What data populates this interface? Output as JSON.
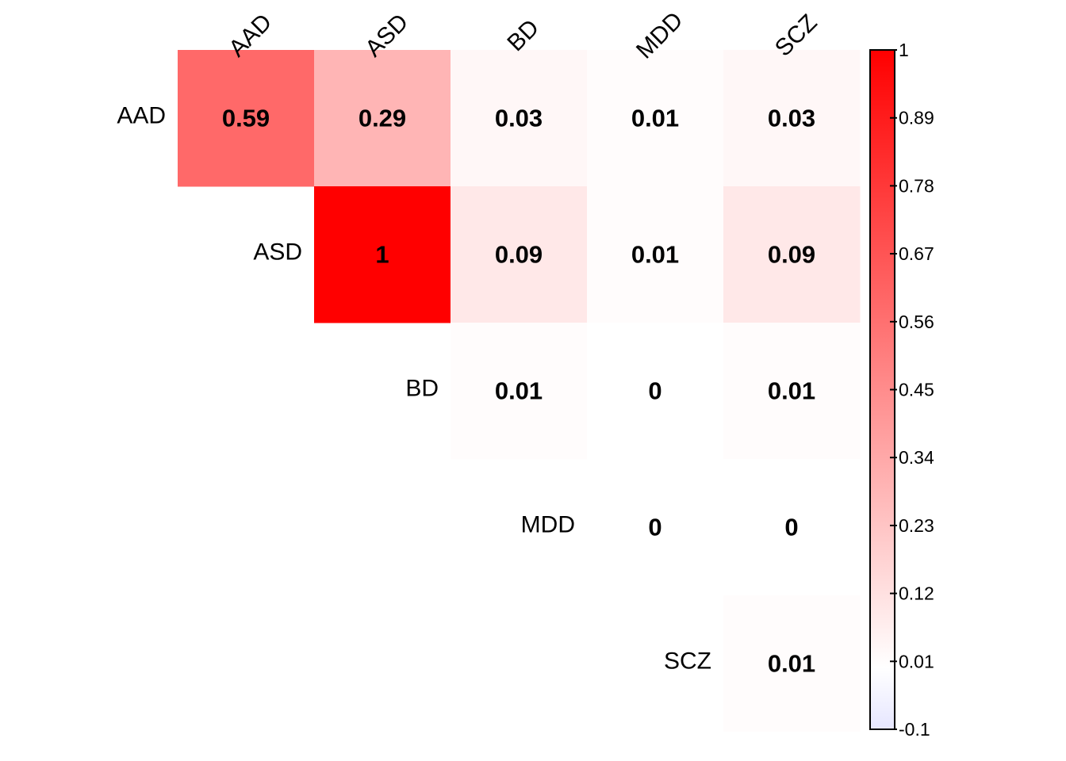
{
  "chart_data": {
    "type": "heatmap",
    "layout": "upper-triangle",
    "categories": [
      "AAD",
      "ASD",
      "BD",
      "MDD",
      "SCZ"
    ],
    "values": [
      [
        0.59,
        0.29,
        0.03,
        0.01,
        0.03
      ],
      [
        null,
        1,
        0.09,
        0.01,
        0.09
      ],
      [
        null,
        null,
        0.01,
        0,
        0.01
      ],
      [
        null,
        null,
        null,
        0,
        0
      ],
      [
        null,
        null,
        null,
        null,
        0.01
      ]
    ],
    "value_labels": [
      [
        "0.59",
        "0.29",
        "0.03",
        "0.01",
        "0.03"
      ],
      [
        null,
        "1",
        "0.09",
        "0.01",
        "0.09"
      ],
      [
        null,
        null,
        "0.01",
        "0",
        "0.01"
      ],
      [
        null,
        null,
        null,
        "0",
        "0"
      ],
      [
        null,
        null,
        null,
        null,
        "0.01"
      ]
    ],
    "color_scale": {
      "min": -0.1,
      "max": 1,
      "low_color": "#E6E6FF",
      "mid_color": "#FFFFFF",
      "high_color": "#FF0000",
      "midpoint": 0
    },
    "legend": {
      "position": "right",
      "ticks": [
        "1",
        "0.89",
        "0.78",
        "0.67",
        "0.56",
        "0.45",
        "0.34",
        "0.23",
        "0.12",
        "0.01",
        "-0.1"
      ]
    },
    "grid": false
  }
}
